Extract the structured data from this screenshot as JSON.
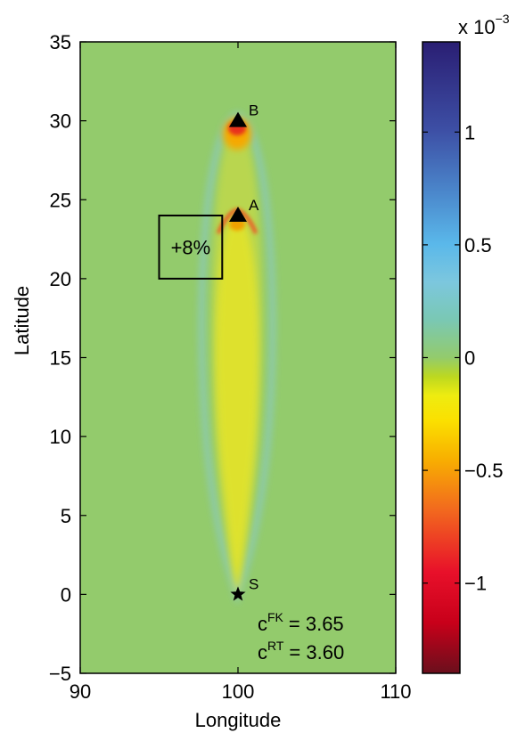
{
  "chart_data": {
    "type": "heatmap",
    "xlabel": "Longitude",
    "ylabel": "Latitude",
    "xlim": [
      90,
      110
    ],
    "ylim": [
      -5,
      35
    ],
    "xticks": [
      "90",
      "100",
      "110"
    ],
    "yticks": [
      "−5",
      "0",
      "5",
      "10",
      "15",
      "20",
      "25",
      "30",
      "35"
    ],
    "colorbar": {
      "range": [
        -1.4,
        1.4
      ],
      "ticks": [
        "−1",
        "−0.5",
        "0",
        "0.5",
        "1"
      ],
      "multiplier_base": "x 10",
      "multiplier_exp": "−3",
      "background_value": 0
    },
    "points": [
      {
        "label": "S",
        "lon": 100,
        "lat": 0,
        "marker": "star"
      },
      {
        "label": "A",
        "lon": 100,
        "lat": 24,
        "marker": "triangle"
      },
      {
        "label": "B",
        "lon": 100,
        "lat": 30,
        "marker": "triangle"
      }
    ],
    "box": {
      "lon": [
        95,
        99
      ],
      "lat": [
        20,
        24
      ],
      "label": "+8%"
    },
    "annotations": {
      "c_fk_base": "c",
      "c_fk_sup": "FK",
      "c_fk_value": "= 3.65",
      "c_rt_base": "c",
      "c_rt_sup": "RT",
      "c_rt_value": "= 3.60"
    },
    "colors": {
      "background_field": "#93cb6c",
      "negative_peak": "#e8001a",
      "positive_peak": "#2a1e73"
    }
  }
}
